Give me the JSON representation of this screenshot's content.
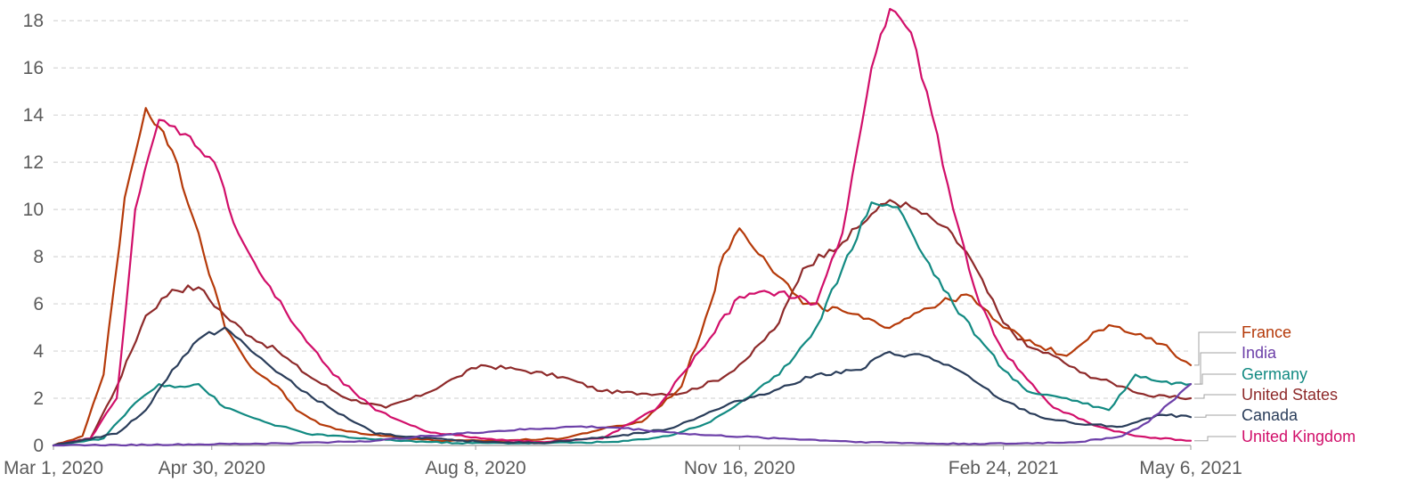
{
  "chart_data": {
    "type": "line",
    "title": "",
    "xlabel": "",
    "ylabel": "",
    "x_range": [
      "2020-03-01",
      "2021-05-06"
    ],
    "ylim": [
      0,
      18.5
    ],
    "y_ticks": [
      0,
      2,
      4,
      6,
      8,
      10,
      12,
      14,
      16,
      18
    ],
    "y_tick_labels": [
      "0",
      "2",
      "4",
      "6",
      "8",
      "10",
      "12",
      "14",
      "16",
      "18"
    ],
    "x_ticks": [
      "2020-03-01",
      "2020-04-30",
      "2020-08-08",
      "2020-11-16",
      "2021-02-24",
      "2021-05-06"
    ],
    "x_tick_labels": [
      "Mar 1, 2020",
      "Apr 30, 2020",
      "Aug 8, 2020",
      "Nov 16, 2020",
      "Feb 24, 2021",
      "May 6, 2021"
    ],
    "grid": true,
    "legend_placement": "right, labels at line ends",
    "legend_order": [
      "France",
      "India",
      "Germany",
      "United States",
      "Canada",
      "United Kingdom"
    ],
    "series": [
      {
        "name": "United States",
        "color": "#8e2a2a",
        "x": [
          "2020-03-01",
          "2020-03-15",
          "2020-03-25",
          "2020-04-05",
          "2020-04-15",
          "2020-04-25",
          "2020-05-05",
          "2020-05-15",
          "2020-05-25",
          "2020-06-05",
          "2020-06-20",
          "2020-07-05",
          "2020-07-20",
          "2020-08-01",
          "2020-08-10",
          "2020-08-25",
          "2020-09-10",
          "2020-09-25",
          "2020-10-10",
          "2020-10-25",
          "2020-11-10",
          "2020-11-20",
          "2020-12-01",
          "2020-12-10",
          "2020-12-20",
          "2020-12-25",
          "2021-01-05",
          "2021-01-12",
          "2021-01-20",
          "2021-02-01",
          "2021-02-10",
          "2021-02-24",
          "2021-03-05",
          "2021-03-15",
          "2021-03-25",
          "2021-04-10",
          "2021-04-20",
          "2021-05-06"
        ],
        "y": [
          0,
          0.3,
          2.5,
          5.5,
          6.6,
          6.7,
          5.5,
          4.6,
          4.0,
          3.0,
          2.0,
          1.6,
          2.2,
          2.9,
          3.4,
          3.2,
          2.9,
          2.3,
          2.2,
          2.2,
          2.9,
          3.8,
          5.2,
          7.5,
          8.3,
          8.6,
          9.8,
          10.4,
          10.1,
          9.3,
          8.2,
          5.2,
          4.2,
          3.8,
          3.1,
          2.5,
          2.1,
          2.0
        ]
      },
      {
        "name": "France",
        "color": "#b53a0a",
        "x": [
          "2020-03-01",
          "2020-03-12",
          "2020-03-20",
          "2020-03-28",
          "2020-04-05",
          "2020-04-10",
          "2020-04-15",
          "2020-04-25",
          "2020-05-05",
          "2020-05-15",
          "2020-05-25",
          "2020-06-01",
          "2020-06-10",
          "2020-06-20",
          "2020-07-05",
          "2020-07-25",
          "2020-08-15",
          "2020-09-10",
          "2020-09-25",
          "2020-10-10",
          "2020-10-25",
          "2020-11-05",
          "2020-11-10",
          "2020-11-16",
          "2020-11-25",
          "2020-12-10",
          "2020-12-25",
          "2021-01-10",
          "2021-01-25",
          "2021-02-10",
          "2021-02-24",
          "2021-03-10",
          "2021-03-20",
          "2021-03-30",
          "2021-04-05",
          "2021-04-15",
          "2021-04-25",
          "2021-05-06"
        ],
        "y": [
          0,
          0.4,
          3.0,
          10.5,
          14.3,
          13.5,
          12.5,
          9.0,
          5.0,
          3.3,
          2.5,
          1.5,
          0.9,
          0.6,
          0.4,
          0.2,
          0.2,
          0.3,
          0.7,
          1.0,
          2.5,
          6.0,
          8.1,
          9.2,
          8.0,
          6.0,
          5.7,
          5.0,
          5.8,
          6.4,
          5.0,
          4.2,
          3.8,
          4.8,
          5.1,
          4.7,
          4.3,
          3.4
        ]
      },
      {
        "name": "United Kingdom",
        "color": "#d10f6a",
        "x": [
          "2020-03-01",
          "2020-03-15",
          "2020-03-25",
          "2020-04-01",
          "2020-04-10",
          "2020-04-20",
          "2020-05-01",
          "2020-05-10",
          "2020-05-20",
          "2020-06-01",
          "2020-06-15",
          "2020-07-01",
          "2020-07-20",
          "2020-08-10",
          "2020-09-01",
          "2020-09-25",
          "2020-10-15",
          "2020-11-01",
          "2020-11-16",
          "2020-12-01",
          "2020-12-15",
          "2020-12-25",
          "2021-01-05",
          "2021-01-12",
          "2021-01-20",
          "2021-01-28",
          "2021-02-05",
          "2021-02-15",
          "2021-02-24",
          "2021-03-05",
          "2021-03-15",
          "2021-04-01",
          "2021-04-15",
          "2021-05-06"
        ],
        "y": [
          0,
          0.3,
          2.0,
          10.0,
          13.8,
          13.2,
          12.0,
          9.0,
          7.0,
          5.0,
          3.0,
          1.5,
          0.6,
          0.3,
          0.15,
          0.3,
          1.5,
          4.0,
          6.3,
          6.5,
          6.0,
          9.0,
          16.0,
          18.5,
          17.5,
          14.0,
          10.0,
          6.0,
          4.0,
          2.8,
          1.6,
          0.8,
          0.4,
          0.2
        ]
      },
      {
        "name": "Germany",
        "color": "#128a82",
        "x": [
          "2020-03-01",
          "2020-03-20",
          "2020-04-01",
          "2020-04-10",
          "2020-04-18",
          "2020-04-25",
          "2020-05-05",
          "2020-05-20",
          "2020-06-05",
          "2020-07-01",
          "2020-08-01",
          "2020-09-01",
          "2020-10-01",
          "2020-10-20",
          "2020-11-05",
          "2020-11-16",
          "2020-12-01",
          "2020-12-15",
          "2020-12-25",
          "2021-01-05",
          "2021-01-15",
          "2021-01-25",
          "2021-02-05",
          "2021-02-15",
          "2021-02-24",
          "2021-03-05",
          "2021-03-20",
          "2021-04-05",
          "2021-04-15",
          "2021-04-25",
          "2021-05-06"
        ],
        "y": [
          0,
          0.3,
          1.8,
          2.6,
          2.5,
          2.6,
          1.6,
          1.0,
          0.5,
          0.25,
          0.1,
          0.1,
          0.15,
          0.4,
          1.0,
          1.8,
          3.0,
          5.0,
          7.5,
          10.3,
          10.1,
          8.0,
          6.0,
          4.5,
          3.2,
          2.3,
          2.0,
          1.5,
          3.0,
          2.7,
          2.6
        ]
      },
      {
        "name": "Canada",
        "color": "#2a3d5a",
        "x": [
          "2020-03-01",
          "2020-03-25",
          "2020-04-05",
          "2020-04-15",
          "2020-04-25",
          "2020-05-05",
          "2020-05-15",
          "2020-06-01",
          "2020-06-15",
          "2020-07-01",
          "2020-08-01",
          "2020-09-01",
          "2020-10-01",
          "2020-10-20",
          "2020-11-16",
          "2020-12-01",
          "2020-12-15",
          "2021-01-01",
          "2021-01-10",
          "2021-01-25",
          "2021-02-05",
          "2021-02-24",
          "2021-03-10",
          "2021-03-25",
          "2021-04-10",
          "2021-04-25",
          "2021-05-06"
        ],
        "y": [
          0,
          0.5,
          1.5,
          3.2,
          4.5,
          5.0,
          4.0,
          2.5,
          1.5,
          0.5,
          0.2,
          0.1,
          0.4,
          0.7,
          1.9,
          2.4,
          3.0,
          3.2,
          3.9,
          3.8,
          3.3,
          1.9,
          1.2,
          0.9,
          0.8,
          1.3,
          1.2
        ]
      },
      {
        "name": "India",
        "color": "#6c3fa8",
        "x": [
          "2020-03-01",
          "2020-05-01",
          "2020-06-01",
          "2020-07-01",
          "2020-07-20",
          "2020-08-15",
          "2020-09-15",
          "2020-10-01",
          "2020-11-01",
          "2020-12-01",
          "2021-01-01",
          "2021-02-01",
          "2021-03-01",
          "2021-03-25",
          "2021-04-10",
          "2021-04-20",
          "2021-04-28",
          "2021-05-06"
        ],
        "y": [
          0,
          0.05,
          0.1,
          0.2,
          0.4,
          0.6,
          0.8,
          0.75,
          0.45,
          0.3,
          0.15,
          0.07,
          0.08,
          0.15,
          0.4,
          1.0,
          1.8,
          2.6
        ]
      }
    ]
  }
}
